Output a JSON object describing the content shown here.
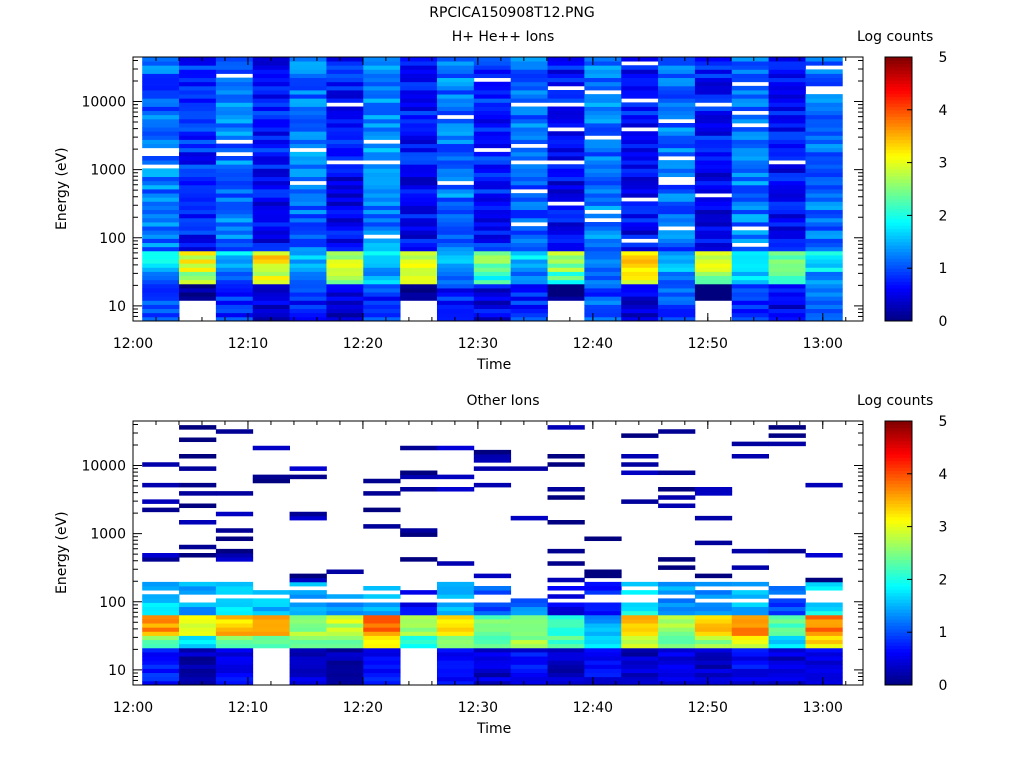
{
  "page_title": "RPCICA150908T12.PNG",
  "colorbar": {
    "label": "Log counts",
    "ticks": [
      "0",
      "1",
      "2",
      "3",
      "4",
      "5"
    ],
    "colormap": [
      "#00007f",
      "#0000ff",
      "#007fff",
      "#00ffff",
      "#7fff7f",
      "#ffff00",
      "#ff7f00",
      "#ff0000",
      "#7f0000"
    ]
  },
  "chart_data": [
    {
      "type": "heatmap",
      "title": "H+ He++ Ions",
      "xlabel": "Time",
      "ylabel": "Energy (eV)",
      "y_scale": "log",
      "ylim": [
        6,
        45000
      ],
      "x_ticks": [
        "12:00",
        "12:10",
        "12:20",
        "12:30",
        "12:40",
        "12:50",
        "13:00"
      ],
      "y_ticks": [
        "10",
        "100",
        "1000",
        "10000"
      ],
      "zlim": [
        0,
        5
      ],
      "time_columns": [
        "12:00",
        "12:03",
        "12:06",
        "12:10",
        "12:13",
        "12:16",
        "12:20",
        "12:23",
        "12:26",
        "12:30",
        "12:33",
        "12:36",
        "12:40",
        "12:43",
        "12:46",
        "12:50",
        "12:53",
        "12:56",
        "13:00"
      ],
      "energy_bins": 64,
      "summary_log_counts": {
        "10-20 eV": [
          1.0,
          0.0,
          0.8,
          0.5,
          0.8,
          0.5,
          0.8,
          0.0,
          0.8,
          0.5,
          0.8,
          0.0,
          1.0,
          0.5,
          1.0,
          0.0,
          0.8,
          0.5,
          1.0
        ],
        "20-30 eV": [
          1.0,
          2.6,
          1.2,
          3.0,
          1.2,
          2.6,
          1.4,
          2.8,
          1.2,
          2.0,
          1.2,
          2.2,
          1.0,
          3.0,
          1.2,
          2.6,
          1.6,
          2.2,
          1.4
        ],
        "30-60 eV": [
          1.8,
          3.0,
          1.6,
          3.2,
          1.6,
          2.8,
          1.6,
          3.0,
          1.6,
          2.4,
          1.6,
          2.6,
          1.2,
          3.2,
          1.6,
          3.0,
          1.8,
          2.4,
          1.8
        ],
        "60-1000 eV": [
          1.2,
          0.7,
          1.2,
          0.6,
          1.1,
          0.6,
          1.3,
          0.6,
          1.2,
          0.7,
          1.1,
          0.6,
          1.2,
          0.6,
          1.1,
          0.6,
          1.2,
          0.6,
          1.2
        ],
        "1000-45000 eV": [
          1.1,
          0.8,
          1.2,
          0.7,
          1.2,
          0.7,
          1.3,
          0.7,
          1.2,
          0.8,
          1.2,
          0.7,
          1.2,
          0.7,
          1.2,
          0.7,
          1.2,
          0.7,
          1.1
        ]
      }
    },
    {
      "type": "heatmap",
      "title": "Other Ions",
      "xlabel": "Time",
      "ylabel": "Energy (eV)",
      "y_scale": "log",
      "ylim": [
        6,
        45000
      ],
      "x_ticks": [
        "12:00",
        "12:10",
        "12:20",
        "12:30",
        "12:40",
        "12:50",
        "13:00"
      ],
      "y_ticks": [
        "10",
        "100",
        "1000",
        "10000"
      ],
      "zlim": [
        0,
        5
      ],
      "time_columns": [
        "12:00",
        "12:03",
        "12:06",
        "12:10",
        "12:13",
        "12:16",
        "12:20",
        "12:23",
        "12:26",
        "12:30",
        "12:33",
        "12:36",
        "12:40",
        "12:43",
        "12:46",
        "12:50",
        "12:53",
        "12:56",
        "13:00"
      ],
      "energy_bins": 64,
      "summary_log_counts": {
        "10-20 eV": [
          0.8,
          0.3,
          0.6,
          0.0,
          0.4,
          0.3,
          0.6,
          0.0,
          0.5,
          0.4,
          0.6,
          0.3,
          0.6,
          0.3,
          0.5,
          0.4,
          0.6,
          0.4,
          0.6
        ],
        "20-30 eV": [
          2.4,
          1.8,
          2.4,
          2.4,
          2.4,
          2.4,
          3.0,
          2.0,
          2.6,
          2.2,
          2.6,
          2.2,
          1.6,
          3.0,
          2.4,
          2.6,
          3.0,
          1.8,
          3.2
        ],
        "30-60 eV": [
          3.6,
          3.0,
          3.4,
          3.6,
          2.6,
          2.8,
          3.8,
          2.6,
          3.4,
          2.4,
          2.6,
          2.0,
          1.4,
          3.4,
          2.6,
          3.4,
          3.8,
          2.2,
          3.8
        ],
        "60-200 eV": [
          1.6,
          1.4,
          1.8,
          1.6,
          1.4,
          1.4,
          1.6,
          0.6,
          1.4,
          1.0,
          1.2,
          0.6,
          0.8,
          1.8,
          1.4,
          1.4,
          1.6,
          1.0,
          1.8
        ],
        "200-45000 eV": [
          0.2,
          0.1,
          0.2,
          0.1,
          0.2,
          0.1,
          0.2,
          0.1,
          0.2,
          0.1,
          0.2,
          0.1,
          0.1,
          0.1,
          0.1,
          0.1,
          0.2,
          0.1,
          0.2
        ]
      }
    }
  ]
}
